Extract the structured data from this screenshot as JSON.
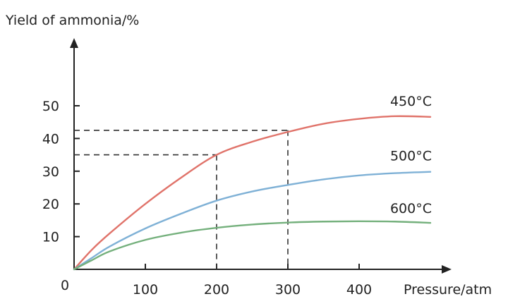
{
  "chart_data": {
    "type": "line",
    "ylabel": "Yield of ammonia/%",
    "xlabel": "Pressure/atm",
    "origin_label": "0",
    "xlim": [
      0,
      500
    ],
    "ylim": [
      0,
      50
    ],
    "x_ticks": [
      100,
      200,
      300,
      400
    ],
    "x_tick_labels": [
      "100",
      "200",
      "300",
      "400"
    ],
    "y_ticks": [
      10,
      20,
      30,
      40,
      50
    ],
    "y_tick_labels": [
      "10",
      "20",
      "30",
      "40",
      "50"
    ],
    "grid": false,
    "legend": "series labels at right end of curves",
    "x": [
      0,
      25,
      50,
      100,
      150,
      200,
      250,
      300,
      350,
      400,
      450,
      500
    ],
    "series": [
      {
        "name": "450°C",
        "color": "#e0736a",
        "values": [
          0,
          6,
          11,
          20,
          28,
          35,
          39,
          42,
          44.5,
          46,
          46.8,
          46.6
        ]
      },
      {
        "name": "500°C",
        "color": "#7fb1d6",
        "values": [
          0,
          3.5,
          7,
          12.5,
          17,
          21,
          23.8,
          25.8,
          27.5,
          28.7,
          29.4,
          29.8
        ]
      },
      {
        "name": "600°C",
        "color": "#74b07c",
        "values": [
          0,
          2.8,
          5.5,
          9,
          11.2,
          12.7,
          13.7,
          14.3,
          14.6,
          14.7,
          14.6,
          14.2
        ]
      }
    ],
    "reference_lines": [
      {
        "x": 200,
        "y": 35
      },
      {
        "x": 300,
        "y": 42.5
      }
    ]
  }
}
